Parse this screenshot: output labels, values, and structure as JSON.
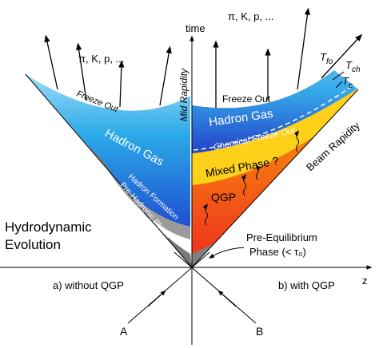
{
  "axes": {
    "time": "time",
    "z": "z",
    "mid_rapidity": "Mid Rapidity",
    "beam_rapidity": "Beam Rapidity"
  },
  "left": {
    "particles": "π, K, p, ...",
    "freeze_out": "Freeze Out",
    "hadron_gas": "Hadron Gas",
    "hadron_formation": "Hadron Formation",
    "pre_hadronic": "Pre-Hadronic Phase",
    "evolution": [
      "Hydrodynamic",
      "Evolution"
    ],
    "caption": "a) without QGP"
  },
  "right": {
    "particles": "π, K, p, ...",
    "freeze_out": "Freeze Out",
    "hadron_gas": "Hadron Gas",
    "chemical_freeze_out": "Chemical Freeze Out",
    "mixed_phase": "Mixed Phase ?",
    "qgp": "QGP",
    "pre_equilibrium": [
      "Pre-Equilibrium",
      "Phase (< τ₀)"
    ],
    "caption": "b) with QGP"
  },
  "temperatures": [
    {
      "symbol": "T",
      "subscript": "fo"
    },
    {
      "symbol": "T",
      "subscript": "ch"
    },
    {
      "symbol": "T",
      "subscript": "c"
    }
  ],
  "beams": {
    "a": "A",
    "b": "B"
  }
}
